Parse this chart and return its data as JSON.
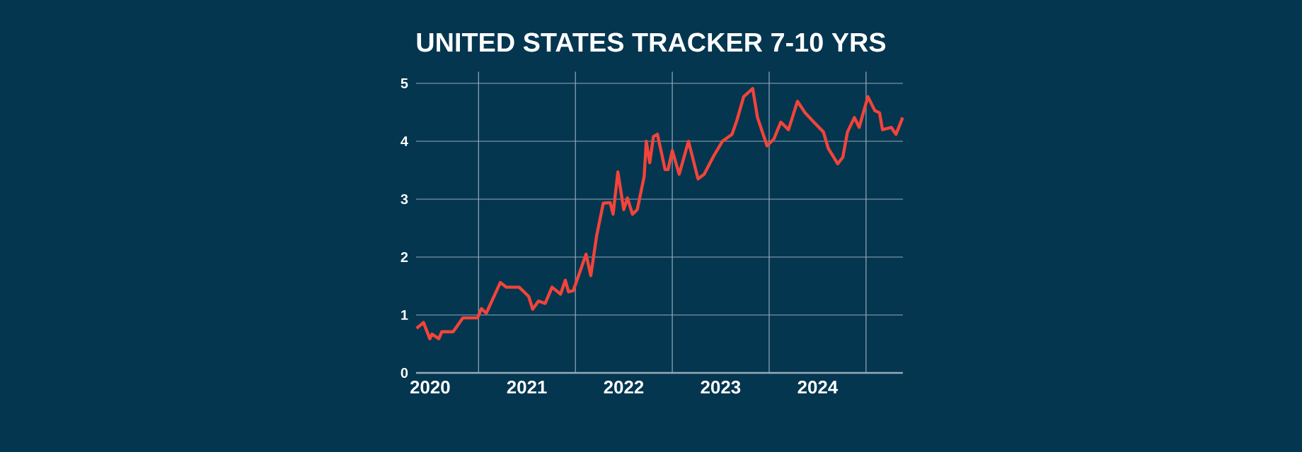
{
  "chart_data": {
    "type": "line",
    "title": "UNITED STATES TRACKER 7-10 YRS",
    "x": [
      "2020-05-12",
      "2020-06-07",
      "2020-07-01",
      "2020-07-09",
      "2020-08-04",
      "2020-08-15",
      "2020-09-27",
      "2020-11-03",
      "2020-12-28",
      "2021-01-12",
      "2021-01-30",
      "2021-03-24",
      "2021-04-16",
      "2021-06-03",
      "2021-07-09",
      "2021-07-24",
      "2021-08-15",
      "2021-09-09",
      "2021-10-05",
      "2021-11-06",
      "2021-11-24",
      "2021-12-06",
      "2021-12-24",
      "2022-01-19",
      "2022-02-10",
      "2022-02-28",
      "2022-03-22",
      "2022-04-16",
      "2022-05-12",
      "2022-05-23",
      "2022-06-10",
      "2022-07-02",
      "2022-07-16",
      "2022-08-04",
      "2022-08-22",
      "2022-09-17",
      "2022-09-25",
      "2022-10-08",
      "2022-10-22",
      "2022-11-06",
      "2022-12-05",
      "2022-12-16",
      "2023-01-01",
      "2023-01-27",
      "2023-03-03",
      "2023-04-08",
      "2023-05-01",
      "2023-06-03",
      "2023-07-09",
      "2023-08-14",
      "2023-09-02",
      "2023-09-27",
      "2023-10-31",
      "2023-11-18",
      "2023-12-24",
      "2024-01-19",
      "2024-02-14",
      "2024-03-14",
      "2024-04-17",
      "2024-05-16",
      "2024-06-18",
      "2024-07-24",
      "2024-08-11",
      "2024-09-16",
      "2024-10-05",
      "2024-10-23",
      "2024-11-18",
      "2024-12-06",
      "2025-01-08",
      "2025-02-03",
      "2025-02-21",
      "2025-03-04",
      "2025-04-06",
      "2025-04-24",
      "2025-05-19"
    ],
    "series": [
      {
        "color": "#f2443a",
        "values": [
          0.77,
          0.87,
          0.59,
          0.67,
          0.59,
          0.71,
          0.71,
          0.95,
          0.95,
          1.11,
          1.03,
          1.56,
          1.48,
          1.48,
          1.32,
          1.1,
          1.24,
          1.2,
          1.48,
          1.36,
          1.6,
          1.4,
          1.42,
          1.76,
          2.05,
          1.68,
          2.37,
          2.93,
          2.94,
          2.74,
          3.47,
          2.82,
          3.02,
          2.74,
          2.82,
          3.39,
          4.0,
          3.63,
          4.08,
          4.12,
          3.51,
          3.51,
          3.84,
          3.43,
          4.0,
          3.35,
          3.43,
          3.72,
          4.0,
          4.12,
          4.37,
          4.77,
          4.91,
          4.41,
          3.92,
          4.04,
          4.33,
          4.2,
          4.69,
          4.49,
          4.33,
          4.16,
          3.88,
          3.61,
          3.72,
          4.16,
          4.41,
          4.24,
          4.77,
          4.53,
          4.49,
          4.2,
          4.24,
          4.12,
          4.41
        ]
      }
    ],
    "xlim": [
      "2020-05-10",
      "2025-05-20"
    ],
    "xticks": [
      {
        "value": "2020-07-02",
        "label": "2020"
      },
      {
        "value": "2021",
        "label": null
      },
      {
        "value": "2021-07-02",
        "label": "2021"
      },
      {
        "value": "2022",
        "label": null
      },
      {
        "value": "2022-07-02",
        "label": "2022"
      },
      {
        "value": "2023",
        "label": null
      },
      {
        "value": "2023-07-02",
        "label": "2023"
      },
      {
        "value": "2024",
        "label": null
      },
      {
        "value": "2024-07-02",
        "label": "2024"
      },
      {
        "value": "2025",
        "label": null
      }
    ],
    "ylim": [
      0,
      5
    ],
    "yticks": [
      0,
      1,
      2,
      3,
      4,
      5
    ],
    "grid": true,
    "legend": false,
    "line_style": "solid",
    "marker": "none"
  }
}
